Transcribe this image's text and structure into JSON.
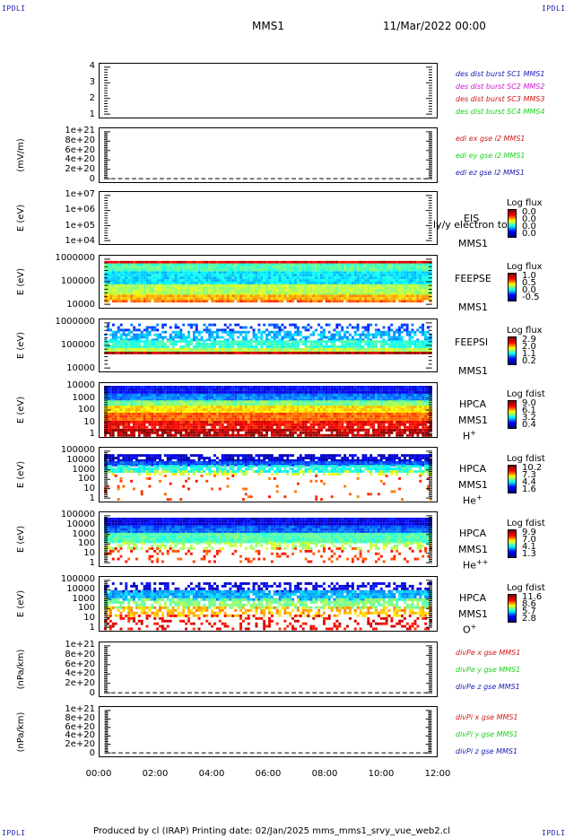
{
  "header": {
    "corner_tl": "IPDLI",
    "corner_tr": "IPDLI",
    "corner_bl": "IPDLI",
    "corner_br": "IPDLI",
    "spacecraft": "MMS1",
    "datetime": "11/Mar/2022 00:00"
  },
  "footer": {
    "text": "Produced by cl (IRAP)   Printing date: 02/Jan/2025   mms_mms1_srvy_vue_web2.cl"
  },
  "colors": {
    "blue": "#1a1ab4",
    "magenta": "#d21ad2",
    "red": "#d21a1a",
    "green": "#1ad21a"
  },
  "chart_data": [
    {
      "id": "p1",
      "type": "line",
      "yticks": [
        "4",
        "3",
        "2",
        "1"
      ],
      "ylabel": "",
      "legend": [
        {
          "text": "des dist burst SC1 MMS1",
          "color": "blue"
        },
        {
          "text": "des dist burst SC2 MMS2",
          "color": "magenta"
        },
        {
          "text": "des dist burst SC3 MMS3",
          "color": "red"
        },
        {
          "text": "des dist burst SC4 MMS4",
          "color": "green"
        }
      ]
    },
    {
      "id": "p2",
      "type": "line",
      "yticks": [
        "1e+21",
        "8e+20",
        "6e+20",
        "4e+20",
        "2e+20",
        "0"
      ],
      "ylabel": "(mV/m)",
      "legend": [
        {
          "text": "edi ex gse l2 MMS1",
          "color": "red"
        },
        {
          "text": "edi ey gse l2 MMS1",
          "color": "green"
        },
        {
          "text": "edi ez gse l2 MMS1",
          "color": "blue"
        }
      ]
    },
    {
      "id": "p3",
      "type": "heatmap",
      "yticks": [
        "1e+07",
        "1e+06",
        "1e+05",
        "1e+04"
      ],
      "ylabel": "E (eV)",
      "labels": [
        "EIS",
        "MMS1"
      ],
      "overlay": "ly/y electron to",
      "cb_title": "Log flux",
      "cb_ticks": [
        "0.0",
        "0.0",
        "0.0",
        "0.0"
      ]
    },
    {
      "id": "p4",
      "type": "heatmap",
      "yticks": [
        "1000000",
        "100000",
        "10000"
      ],
      "ylabel": "E (eV)",
      "labels": [
        "FEEPSE",
        "MMS1"
      ],
      "cb_title": "Log flux",
      "cb_ticks": [
        "1.0",
        "0.5",
        "0.0",
        "-0.5"
      ]
    },
    {
      "id": "p5",
      "type": "heatmap",
      "yticks": [
        "1000000",
        "100000",
        "10000"
      ],
      "ylabel": "E (eV)",
      "labels": [
        "FEEPSI",
        "MMS1"
      ],
      "cb_title": "Log flux",
      "cb_ticks": [
        "2.9",
        "2.0",
        "1.1",
        "0.2"
      ]
    },
    {
      "id": "p6",
      "type": "heatmap",
      "yticks": [
        "10000",
        "1000",
        "100",
        "10",
        "1"
      ],
      "ylabel": "E (eV)",
      "labels": [
        "HPCA",
        "MMS1"
      ],
      "species": "H",
      "species_sup": "+",
      "cb_title": "Log fdist",
      "cb_ticks": [
        "9.0",
        "6.1",
        "3.2",
        "0.4"
      ]
    },
    {
      "id": "p7",
      "type": "heatmap",
      "yticks": [
        "100000",
        "10000",
        "1000",
        "100",
        "10",
        "1"
      ],
      "ylabel": "E (eV)",
      "labels": [
        "HPCA",
        "MMS1"
      ],
      "species": "He",
      "species_sup": "+",
      "cb_title": "Log fdist",
      "cb_ticks": [
        "10.2",
        "7.3",
        "4.4",
        "1.6"
      ]
    },
    {
      "id": "p8",
      "type": "heatmap",
      "yticks": [
        "100000",
        "10000",
        "1000",
        "100",
        "10",
        "1"
      ],
      "ylabel": "E (eV)",
      "labels": [
        "HPCA",
        "MMS1"
      ],
      "species": "He",
      "species_sup": "++",
      "cb_title": "Log fdist",
      "cb_ticks": [
        "9.9",
        "7.0",
        "4.1",
        "1.3"
      ]
    },
    {
      "id": "p9",
      "type": "heatmap",
      "yticks": [
        "100000",
        "10000",
        "1000",
        "100",
        "10",
        "1"
      ],
      "ylabel": "E (eV)",
      "labels": [
        "HPCA",
        "MMS1"
      ],
      "species": "O",
      "species_sup": "+",
      "cb_title": "Log fdist",
      "cb_ticks": [
        "11.6",
        "8.6",
        "5.7",
        "2.8"
      ]
    },
    {
      "id": "p10",
      "type": "line",
      "yticks": [
        "1e+21",
        "8e+20",
        "6e+20",
        "4e+20",
        "2e+20",
        "0"
      ],
      "ylabel": "(nPa/km)",
      "legend": [
        {
          "text": "divPe x gse MMS1",
          "color": "red"
        },
        {
          "text": "divPe y gse MMS1",
          "color": "green"
        },
        {
          "text": "divPe z gse MMS1",
          "color": "blue"
        }
      ]
    },
    {
      "id": "p11",
      "type": "line",
      "yticks": [
        "1e+21",
        "8e+20",
        "6e+20",
        "4e+20",
        "2e+20",
        "0"
      ],
      "ylabel": "(nPa/km)",
      "legend": [
        {
          "text": "divPi x gse MMS1",
          "color": "red"
        },
        {
          "text": "divPi y gse MMS1",
          "color": "green"
        },
        {
          "text": "divPi z gse MMS1",
          "color": "blue"
        }
      ]
    }
  ],
  "xaxis": {
    "ticks": [
      "00:00",
      "02:00",
      "04:00",
      "06:00",
      "08:00",
      "10:00",
      "12:00"
    ]
  }
}
